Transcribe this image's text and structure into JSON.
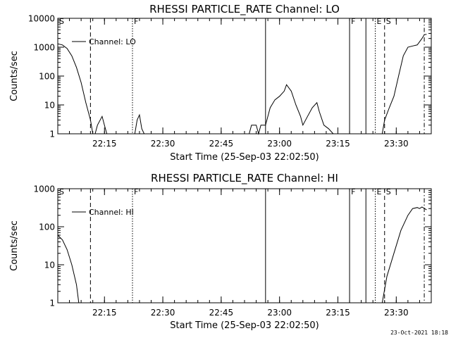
{
  "footer_timestamp": "23-Oct-2021 18:18",
  "chart_data": [
    {
      "type": "line",
      "title": "RHESSI PARTICLE_RATE Channel: LO",
      "xlabel": "Start Time (25-Sep-03 22:02:50)",
      "ylabel": "Counts/sec",
      "yscale": "log",
      "ylim": [
        1,
        10000
      ],
      "xlim_minutes": [
        22.05,
        23.65
      ],
      "x_ticks": [
        {
          "v": 22.25,
          "label": "22:15"
        },
        {
          "v": 22.5,
          "label": "22:30"
        },
        {
          "v": 22.75,
          "label": "22:45"
        },
        {
          "v": 23.0,
          "label": "23:00"
        },
        {
          "v": 23.25,
          "label": "23:15"
        },
        {
          "v": 23.5,
          "label": "23:30"
        }
      ],
      "y_ticks": [
        {
          "v": 1,
          "label": "1"
        },
        {
          "v": 10,
          "label": "10"
        },
        {
          "v": 100,
          "label": "100"
        },
        {
          "v": 1000,
          "label": "1000"
        },
        {
          "v": 10000,
          "label": "10000"
        }
      ],
      "legend": {
        "placement": "top-left",
        "label": "Channel: LO"
      },
      "markers": [
        {
          "x": 22.05,
          "style": "solid",
          "label": "S"
        },
        {
          "x": 22.19,
          "style": "dashed",
          "label": ""
        },
        {
          "x": 22.37,
          "style": "dotted",
          "label": "F"
        },
        {
          "x": 22.94,
          "style": "solid",
          "label": ""
        },
        {
          "x": 23.3,
          "style": "solid",
          "label": "F"
        },
        {
          "x": 23.37,
          "style": "solid",
          "label": ""
        },
        {
          "x": 23.41,
          "style": "dotted",
          "label": "E"
        },
        {
          "x": 23.45,
          "style": "dashed",
          "label": "S"
        },
        {
          "x": 23.62,
          "style": "dashdot",
          "label": ""
        }
      ],
      "series": [
        {
          "segments": [
            [
              [
                22.05,
                1300
              ],
              [
                22.07,
                1200
              ],
              [
                22.09,
                900
              ],
              [
                22.11,
                500
              ],
              [
                22.13,
                200
              ],
              [
                22.15,
                60
              ],
              [
                22.17,
                12
              ],
              [
                22.19,
                3
              ],
              [
                22.2,
                1
              ]
            ],
            [
              [
                22.21,
                1
              ],
              [
                22.22,
                2
              ],
              [
                22.24,
                4
              ],
              [
                22.25,
                2
              ],
              [
                22.26,
                1
              ]
            ],
            [
              [
                22.38,
                1
              ],
              [
                22.39,
                3
              ],
              [
                22.4,
                4.5
              ],
              [
                22.41,
                1.5
              ],
              [
                22.42,
                1
              ]
            ],
            [
              [
                22.87,
                1
              ],
              [
                22.88,
                2
              ],
              [
                22.9,
                2
              ],
              [
                22.91,
                1
              ],
              [
                22.92,
                2
              ],
              [
                22.94,
                2
              ],
              [
                22.96,
                8
              ],
              [
                22.98,
                15
              ],
              [
                23.0,
                20
              ],
              [
                23.02,
                30
              ],
              [
                23.03,
                50
              ],
              [
                23.05,
                30
              ],
              [
                23.07,
                10
              ],
              [
                23.09,
                4
              ],
              [
                23.1,
                2
              ],
              [
                23.12,
                4
              ],
              [
                23.14,
                8
              ],
              [
                23.16,
                12
              ],
              [
                23.17,
                6
              ],
              [
                23.19,
                2
              ],
              [
                23.21,
                1.5
              ],
              [
                23.23,
                1
              ]
            ],
            [
              [
                23.44,
                1
              ],
              [
                23.45,
                3
              ],
              [
                23.47,
                8
              ],
              [
                23.49,
                20
              ],
              [
                23.51,
                100
              ],
              [
                23.53,
                500
              ],
              [
                23.55,
                1000
              ],
              [
                23.57,
                1100
              ],
              [
                23.59,
                1200
              ],
              [
                23.61,
                2000
              ],
              [
                23.62,
                2700
              ],
              [
                23.63,
                2800
              ]
            ]
          ]
        }
      ]
    },
    {
      "type": "line",
      "title": "RHESSI PARTICLE_RATE Channel: HI",
      "xlabel": "Start Time (25-Sep-03 22:02:50)",
      "ylabel": "Counts/sec",
      "yscale": "log",
      "ylim": [
        1,
        1000
      ],
      "xlim_minutes": [
        22.05,
        23.65
      ],
      "x_ticks": [
        {
          "v": 22.25,
          "label": "22:15"
        },
        {
          "v": 22.5,
          "label": "22:30"
        },
        {
          "v": 22.75,
          "label": "22:45"
        },
        {
          "v": 23.0,
          "label": "23:00"
        },
        {
          "v": 23.25,
          "label": "23:15"
        },
        {
          "v": 23.5,
          "label": "23:30"
        }
      ],
      "y_ticks": [
        {
          "v": 1,
          "label": "1"
        },
        {
          "v": 10,
          "label": "10"
        },
        {
          "v": 100,
          "label": "100"
        },
        {
          "v": 1000,
          "label": "1000"
        }
      ],
      "legend": {
        "placement": "top-left",
        "label": "Channel: HI"
      },
      "markers": [
        {
          "x": 22.05,
          "style": "solid",
          "label": "S"
        },
        {
          "x": 22.19,
          "style": "dashed",
          "label": ""
        },
        {
          "x": 22.37,
          "style": "dotted",
          "label": "F"
        },
        {
          "x": 22.94,
          "style": "solid",
          "label": ""
        },
        {
          "x": 23.3,
          "style": "solid",
          "label": "F"
        },
        {
          "x": 23.37,
          "style": "solid",
          "label": ""
        },
        {
          "x": 23.41,
          "style": "dotted",
          "label": "E"
        },
        {
          "x": 23.45,
          "style": "dashed",
          "label": "S"
        },
        {
          "x": 23.62,
          "style": "dashdot",
          "label": ""
        }
      ],
      "series": [
        {
          "segments": [
            [
              [
                22.05,
                60
              ],
              [
                22.07,
                45
              ],
              [
                22.09,
                25
              ],
              [
                22.11,
                10
              ],
              [
                22.13,
                3
              ],
              [
                22.14,
                1
              ]
            ],
            [
              [
                23.44,
                1
              ],
              [
                23.46,
                5
              ],
              [
                23.49,
                20
              ],
              [
                23.52,
                80
              ],
              [
                23.55,
                200
              ],
              [
                23.57,
                300
              ],
              [
                23.59,
                320
              ],
              [
                23.6,
                300
              ],
              [
                23.61,
                330
              ],
              [
                23.63,
                280
              ]
            ]
          ]
        }
      ]
    }
  ]
}
